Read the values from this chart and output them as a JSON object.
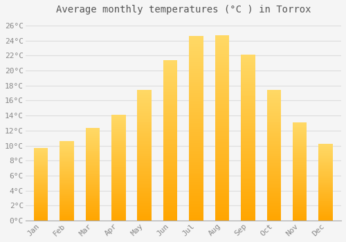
{
  "title": "Average monthly temperatures (°C ) in Torrox",
  "months": [
    "Jan",
    "Feb",
    "Mar",
    "Apr",
    "May",
    "Jun",
    "Jul",
    "Aug",
    "Sep",
    "Oct",
    "Nov",
    "Dec"
  ],
  "temperatures": [
    9.7,
    10.6,
    12.3,
    14.1,
    17.4,
    21.4,
    24.6,
    24.7,
    22.1,
    17.4,
    13.1,
    10.2
  ],
  "bar_color_top": "#FFD966",
  "bar_color_bottom": "#FFA500",
  "background_color": "#F5F5F5",
  "plot_bg_color": "#F5F5F5",
  "grid_color": "#DDDDDD",
  "ylim": [
    0,
    27
  ],
  "yticks": [
    0,
    2,
    4,
    6,
    8,
    10,
    12,
    14,
    16,
    18,
    20,
    22,
    24,
    26
  ],
  "title_fontsize": 10,
  "tick_fontsize": 8,
  "tick_font_color": "#888888",
  "title_font_color": "#555555",
  "bar_width": 0.55
}
